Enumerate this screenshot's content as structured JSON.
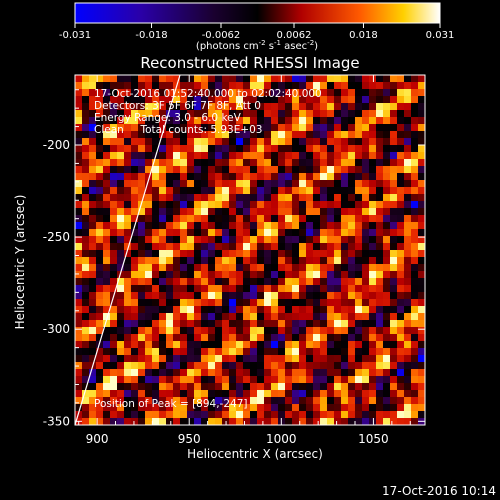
{
  "colorbar": {
    "ticks": [
      "-0.031",
      "-0.018",
      "-0.0062",
      "0.0062",
      "0.018",
      "0.031"
    ],
    "tick_values": [
      -0.031,
      -0.018,
      -0.0062,
      0.0062,
      0.018,
      0.031
    ],
    "range": [
      -0.031,
      0.031
    ],
    "unit_label": "(photons cm",
    "unit_sup1": "-2",
    "unit_mid1": " s",
    "unit_sup2": "-1",
    "unit_mid2": " asec",
    "unit_sup3": "-2",
    "unit_end": ")"
  },
  "chart_data": {
    "type": "heatmap",
    "title": "Reconstructed RHESSI Image",
    "xlabel": "Heliocentric X (arcsec)",
    "ylabel": "Heliocentric Y (arcsec)",
    "xlim": [
      888,
      1078
    ],
    "ylim": [
      -352,
      -162
    ],
    "xticks": [
      900,
      950,
      1000,
      1050
    ],
    "yticks": [
      -200,
      -250,
      -300,
      -350
    ],
    "xtick_labels": [
      "900",
      "950",
      "1000",
      "1050"
    ],
    "ytick_labels": [
      "-200",
      "-250",
      "-300",
      "-350"
    ],
    "colormap": "rainbow-blue-purple-red-yellow-white",
    "solar_limb_line": [
      [
        888,
        -352
      ],
      [
        945,
        -162
      ]
    ],
    "annotations": {
      "time": "17-Oct-2016 01:52:40.000 to 02:02:40.000",
      "detectors": "Detectors: 3F 5F 6F 7F 8F, Att 0",
      "energy": "Energy Range: 3.0 - 6.0 keV",
      "method": "Clean     Total counts: 5.93E+03",
      "peak": "Position of Peak = [894,-247]"
    },
    "peak_position": [
      894,
      -247
    ]
  },
  "footer": {
    "timestamp": "17-Oct-2016 10:14"
  }
}
